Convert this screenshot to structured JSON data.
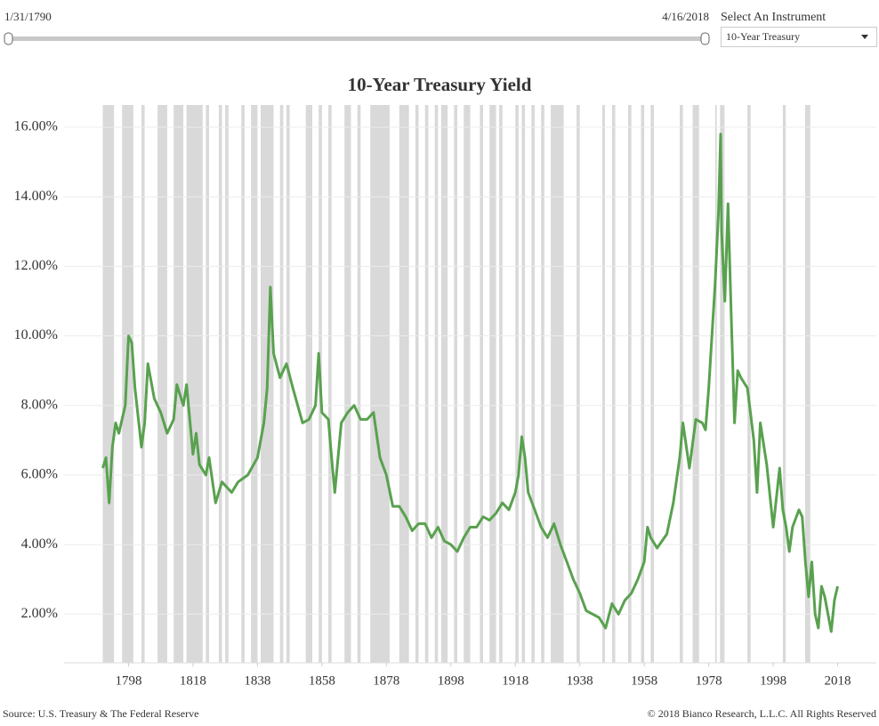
{
  "slider": {
    "start_label": "1/31/1790",
    "end_label": "4/16/2018"
  },
  "instrument": {
    "label": "Select An Instrument",
    "selected": "10-Year Treasury"
  },
  "chart_data": {
    "type": "line",
    "title": "10-Year Treasury Yield",
    "color": "#59a14f",
    "recession_color": "#d9d9d9",
    "grid": true,
    "xlim": [
      1778,
      2030
    ],
    "ylim": [
      0.6,
      16.64
    ],
    "xticks": [
      1798,
      1818,
      1838,
      1858,
      1878,
      1898,
      1918,
      1938,
      1958,
      1978,
      1998,
      2018
    ],
    "yticks": [
      {
        "value": 2,
        "label": "2.00%"
      },
      {
        "value": 4,
        "label": "4.00%"
      },
      {
        "value": 6,
        "label": "6.00%"
      },
      {
        "value": 8,
        "label": "8.00%"
      },
      {
        "value": 10,
        "label": "10.00%"
      },
      {
        "value": 12,
        "label": "12.00%"
      },
      {
        "value": 14,
        "label": "14.00%"
      },
      {
        "value": 16,
        "label": "16.00%"
      }
    ],
    "recessions": [
      [
        1790,
        1793.5
      ],
      [
        1796,
        1799.5
      ],
      [
        1802,
        1803
      ],
      [
        1807,
        1810
      ],
      [
        1812,
        1815
      ],
      [
        1816,
        1821
      ],
      [
        1822,
        1823
      ],
      [
        1826,
        1827
      ],
      [
        1828,
        1829
      ],
      [
        1833,
        1834
      ],
      [
        1836,
        1838
      ],
      [
        1839,
        1843
      ],
      [
        1845,
        1846
      ],
      [
        1847,
        1848
      ],
      [
        1853,
        1855
      ],
      [
        1857,
        1858
      ],
      [
        1860,
        1861
      ],
      [
        1865,
        1867
      ],
      [
        1869,
        1870
      ],
      [
        1873,
        1879
      ],
      [
        1882,
        1885
      ],
      [
        1887,
        1888
      ],
      [
        1890,
        1891
      ],
      [
        1893,
        1894
      ],
      [
        1895,
        1897
      ],
      [
        1899,
        1900
      ],
      [
        1902,
        1904
      ],
      [
        1907,
        1908
      ],
      [
        1910,
        1912
      ],
      [
        1913,
        1914
      ],
      [
        1918,
        1919
      ],
      [
        1920,
        1921
      ],
      [
        1923,
        1924
      ],
      [
        1926,
        1927
      ],
      [
        1929,
        1933
      ],
      [
        1937,
        1938
      ],
      [
        1945,
        1945.8
      ],
      [
        1948,
        1949
      ],
      [
        1953,
        1954
      ],
      [
        1957,
        1958
      ],
      [
        1960,
        1961
      ],
      [
        1969,
        1970
      ],
      [
        1973,
        1975
      ],
      [
        1980,
        1980.5
      ],
      [
        1981.5,
        1982.9
      ],
      [
        1990,
        1991
      ],
      [
        2001,
        2001.9
      ],
      [
        2007.9,
        2009.5
      ]
    ],
    "x": [
      1790,
      1791,
      1792,
      1793,
      1794,
      1795,
      1797,
      1798,
      1799,
      1800,
      1802,
      1803,
      1804,
      1806,
      1808,
      1810,
      1812,
      1813,
      1815,
      1816,
      1818,
      1819,
      1820,
      1822,
      1823,
      1825,
      1827,
      1830,
      1832,
      1835,
      1838,
      1840,
      1841,
      1842,
      1843,
      1845,
      1847,
      1849,
      1852,
      1854,
      1856,
      1857,
      1858,
      1860,
      1861,
      1862,
      1864,
      1866,
      1868,
      1870,
      1872,
      1874,
      1876,
      1878,
      1880,
      1882,
      1884,
      1886,
      1888,
      1890,
      1892,
      1894,
      1896,
      1898,
      1900,
      1902,
      1904,
      1906,
      1908,
      1910,
      1912,
      1914,
      1916,
      1918,
      1919,
      1920,
      1921,
      1922,
      1924,
      1926,
      1928,
      1930,
      1932,
      1934,
      1936,
      1938,
      1940,
      1942,
      1944,
      1946,
      1948,
      1950,
      1952,
      1954,
      1956,
      1958,
      1959,
      1960,
      1962,
      1965,
      1967,
      1969,
      1970,
      1972,
      1974,
      1976,
      1977,
      1978,
      1979,
      1980,
      1981,
      1981.7,
      1982,
      1983,
      1984,
      1985,
      1986,
      1987,
      1988,
      1990,
      1992,
      1993,
      1994,
      1996,
      1998,
      2000,
      2001,
      2002,
      2003,
      2004,
      2006,
      2007,
      2008,
      2009,
      2010,
      2011,
      2012,
      2013,
      2014,
      2016,
      2017,
      2018
    ],
    "values": [
      6.2,
      6.5,
      5.2,
      6.8,
      7.5,
      7.2,
      8.0,
      10.0,
      9.8,
      8.5,
      6.8,
      7.5,
      9.2,
      8.2,
      7.8,
      7.2,
      7.6,
      8.6,
      8.0,
      8.6,
      6.6,
      7.2,
      6.3,
      6.0,
      6.5,
      5.2,
      5.8,
      5.5,
      5.8,
      6.0,
      6.5,
      7.5,
      8.5,
      11.4,
      9.5,
      8.8,
      9.2,
      8.5,
      7.5,
      7.6,
      8.0,
      9.5,
      7.8,
      7.6,
      6.5,
      5.5,
      7.5,
      7.8,
      8.0,
      7.6,
      7.6,
      7.8,
      6.5,
      6.0,
      5.1,
      5.1,
      4.8,
      4.4,
      4.6,
      4.6,
      4.2,
      4.5,
      4.1,
      4.0,
      3.8,
      4.2,
      4.5,
      4.5,
      4.8,
      4.7,
      4.9,
      5.2,
      5.0,
      5.5,
      6.0,
      7.1,
      6.5,
      5.5,
      5.0,
      4.5,
      4.2,
      4.6,
      4.0,
      3.5,
      3.0,
      2.6,
      2.1,
      2.0,
      1.9,
      1.6,
      2.3,
      2.0,
      2.4,
      2.6,
      3.0,
      3.5,
      4.5,
      4.2,
      3.9,
      4.3,
      5.2,
      6.5,
      7.5,
      6.2,
      7.6,
      7.5,
      7.3,
      8.5,
      10.0,
      11.5,
      13.5,
      15.8,
      13.0,
      11.0,
      13.8,
      10.5,
      7.5,
      9.0,
      8.8,
      8.5,
      7.0,
      5.5,
      7.5,
      6.3,
      4.5,
      6.2,
      5.0,
      4.5,
      3.8,
      4.5,
      5.0,
      4.8,
      3.5,
      2.5,
      3.5,
      2.0,
      1.6,
      2.8,
      2.5,
      1.5,
      2.4,
      2.8
    ]
  },
  "footer": {
    "source": "Source: U.S. Treasury & The Federal Reserve",
    "copyright": "© 2018 Bianco Research, L.L.C. All Rights Reserved"
  }
}
